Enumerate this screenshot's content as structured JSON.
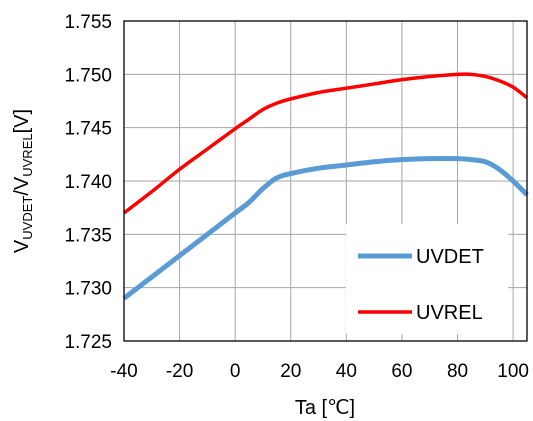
{
  "chart_data": {
    "type": "line",
    "title": "",
    "xlabel": "Ta [℃]",
    "ylabel": {
      "parts": [
        {
          "text": "V",
          "sub": false
        },
        {
          "text": "UVDET",
          "sub": true
        },
        {
          "text": "/V",
          "sub": false
        },
        {
          "text": "UVREL",
          "sub": true
        },
        {
          "text": "[V]",
          "sub": false
        }
      ]
    },
    "xlim": [
      -40,
      105
    ],
    "ylim": [
      1.725,
      1.755
    ],
    "xticks": [
      -40,
      -20,
      0,
      20,
      40,
      60,
      80,
      100
    ],
    "xtick_labels": [
      "-40",
      "-20",
      "0",
      "20",
      "40",
      "60",
      "80",
      "100"
    ],
    "yticks": [
      1.725,
      1.73,
      1.735,
      1.74,
      1.745,
      1.75,
      1.755
    ],
    "ytick_labels": [
      "1.725",
      "1.730",
      "1.735",
      "1.740",
      "1.745",
      "1.750",
      "1.755"
    ],
    "grid": true,
    "legend_position": "bottom-right",
    "series": [
      {
        "name": "UVDET",
        "color": "#5b9bd5",
        "points": [
          [
            -40,
            1.729
          ],
          [
            -30,
            1.731
          ],
          [
            -20,
            1.733
          ],
          [
            -10,
            1.735
          ],
          [
            0,
            1.737
          ],
          [
            5,
            1.738
          ],
          [
            10,
            1.7393
          ],
          [
            15,
            1.7403
          ],
          [
            20,
            1.7407
          ],
          [
            30,
            1.7412
          ],
          [
            40,
            1.7415
          ],
          [
            50,
            1.7418
          ],
          [
            60,
            1.742
          ],
          [
            70,
            1.7421
          ],
          [
            80,
            1.7421
          ],
          [
            85,
            1.742
          ],
          [
            90,
            1.7418
          ],
          [
            95,
            1.7411
          ],
          [
            100,
            1.74
          ],
          [
            105,
            1.7387
          ]
        ]
      },
      {
        "name": "UVREL",
        "color": "#ff0000",
        "points": [
          [
            -40,
            1.737
          ],
          [
            -30,
            1.739
          ],
          [
            -20,
            1.7411
          ],
          [
            -10,
            1.743
          ],
          [
            0,
            1.7449
          ],
          [
            5,
            1.7458
          ],
          [
            10,
            1.7467
          ],
          [
            15,
            1.7473
          ],
          [
            20,
            1.7477
          ],
          [
            30,
            1.7483
          ],
          [
            40,
            1.7487
          ],
          [
            50,
            1.7491
          ],
          [
            60,
            1.7495
          ],
          [
            70,
            1.7498
          ],
          [
            80,
            1.75
          ],
          [
            85,
            1.75
          ],
          [
            90,
            1.7498
          ],
          [
            95,
            1.7494
          ],
          [
            100,
            1.7488
          ],
          [
            105,
            1.7478
          ]
        ]
      }
    ]
  }
}
